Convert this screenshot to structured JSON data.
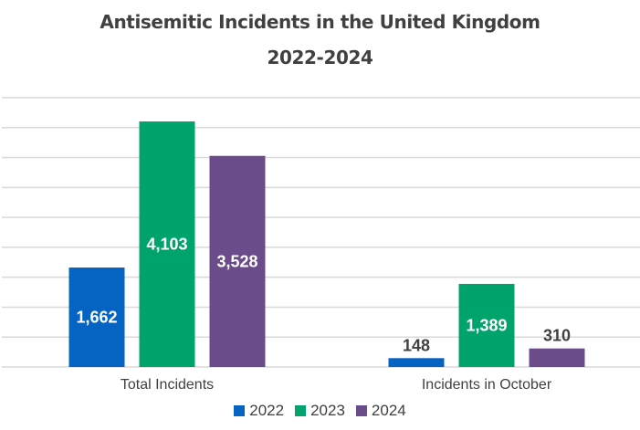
{
  "chart_data": {
    "type": "bar",
    "title": "Antisemitic Incidents in the United Kingdom",
    "subtitle": "2022-2024",
    "categories": [
      "Total Incidents",
      "Incidents in October"
    ],
    "series": [
      {
        "name": "2022",
        "color": "#0563C1",
        "values": [
          1662,
          148
        ],
        "labels": [
          "1,662",
          "148"
        ]
      },
      {
        "name": "2023",
        "color": "#00A36C",
        "values": [
          4103,
          1389
        ],
        "labels": [
          "4,103",
          "1,389"
        ]
      },
      {
        "name": "2024",
        "color": "#6B4C8A",
        "values": [
          3528,
          310
        ],
        "labels": [
          "3,528",
          "310"
        ]
      }
    ],
    "xlabel": "",
    "ylabel": "",
    "ylim": [
      0,
      4500
    ],
    "grid_step": 500,
    "grid": true,
    "y_tick_labels_visible": false,
    "legend_position": "bottom"
  }
}
